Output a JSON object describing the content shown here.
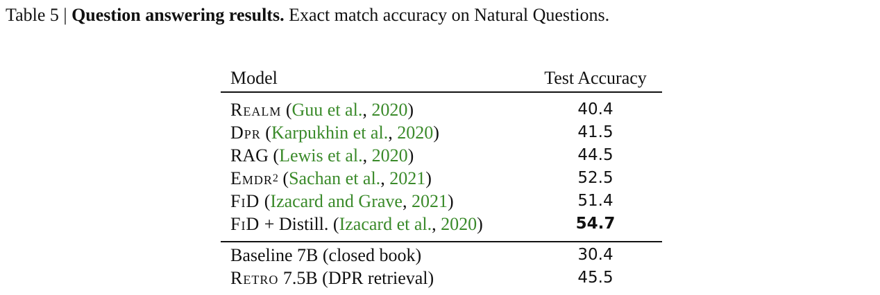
{
  "caption": {
    "label": "Table 5 |",
    "title": "Question answering results.",
    "description": "Exact match accuracy on Natural Questions."
  },
  "table": {
    "headers": [
      "Model",
      "Test Accuracy"
    ],
    "group1": [
      {
        "model": "Realm",
        "sup": "",
        "open": " (",
        "cite_a": "Guu et al.",
        "comma": ", ",
        "cite_y": "2020",
        "close": ")",
        "acc": "40.4",
        "bold": false
      },
      {
        "model": "Dpr",
        "sup": "",
        "open": " (",
        "cite_a": "Karpukhin et al.",
        "comma": ", ",
        "cite_y": "2020",
        "close": ")",
        "acc": "41.5",
        "bold": false
      },
      {
        "model": "RAG",
        "sup": "",
        "open": " (",
        "cite_a": "Lewis et al.",
        "comma": ", ",
        "cite_y": "2020",
        "close": ")",
        "acc": "44.5",
        "bold": false
      },
      {
        "model": "Emdr",
        "sup": "2",
        "open": " (",
        "cite_a": "Sachan et al.",
        "comma": ", ",
        "cite_y": "2021",
        "close": ")",
        "acc": "52.5",
        "bold": false
      },
      {
        "model": "FiD",
        "sup": "",
        "open": " (",
        "cite_a": "Izacard and Grave",
        "comma": ", ",
        "cite_y": "2021",
        "close": ")",
        "acc": "51.4",
        "bold": false
      },
      {
        "model": "FiD",
        "suffix": " + Distill.",
        "sup": "",
        "open": " (",
        "cite_a": "Izacard et al.",
        "comma": ", ",
        "cite_y": "2020",
        "close": ")",
        "acc": "54.7",
        "bold": true
      }
    ],
    "group2": [
      {
        "model": "Baseline 7B (closed book)",
        "acc": "30.4"
      },
      {
        "model": "Retro",
        "suffix": " 7.5B (DPR retrieval)",
        "acc": "45.5"
      }
    ]
  }
}
